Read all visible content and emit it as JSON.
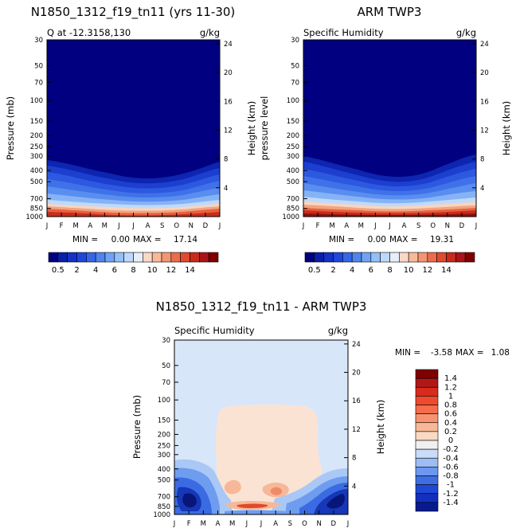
{
  "chart_data": [
    {
      "type": "contour",
      "title": "N1850_1312_f19_tn11 (yrs 11-30)",
      "subtitle_left": "Q at -12.3158,130",
      "units": "g/kg",
      "ylabel_left": "Pressure (mb)",
      "ylabel_right": "Height (km)",
      "months": [
        "J",
        "F",
        "M",
        "A",
        "M",
        "J",
        "J",
        "A",
        "S",
        "O",
        "N",
        "D",
        "J"
      ],
      "pressure_ticks": [
        30,
        50,
        70,
        100,
        150,
        200,
        250,
        300,
        400,
        500,
        700,
        850,
        1000
      ],
      "height_ticks": [
        4,
        8,
        12,
        16,
        20,
        24
      ],
      "ylim": [
        30,
        1000
      ],
      "min_label": "MIN =",
      "max_label": "MAX =",
      "min": "0.00",
      "max": "17.14"
    },
    {
      "type": "contour",
      "title": "ARM TWP3",
      "subtitle_left": "Specific Humidity",
      "units": "g/kg",
      "ylabel_left": "pressure level",
      "ylabel_right": "Height (km)",
      "months": [
        "J",
        "F",
        "M",
        "A",
        "M",
        "J",
        "J",
        "A",
        "S",
        "O",
        "N",
        "D",
        "J"
      ],
      "pressure_ticks": [
        30,
        50,
        70,
        100,
        150,
        200,
        250,
        300,
        400,
        500,
        700,
        850,
        1000
      ],
      "height_ticks": [
        4,
        8,
        12,
        16,
        20,
        24
      ],
      "ylim": [
        30,
        1000
      ],
      "min_label": "MIN =",
      "max_label": "MAX =",
      "min": "0.00",
      "max": "19.31"
    },
    {
      "type": "contour",
      "title": "N1850_1312_f19_tn11 - ARM TWP3",
      "subtitle_left": "Specific Humidity",
      "units": "g/kg",
      "ylabel_left": "Pressure (mb)",
      "ylabel_right": "Height (km)",
      "months": [
        "J",
        "F",
        "M",
        "A",
        "M",
        "J",
        "J",
        "A",
        "S",
        "O",
        "N",
        "D",
        "J"
      ],
      "pressure_ticks": [
        30,
        50,
        70,
        100,
        150,
        200,
        250,
        300,
        400,
        500,
        700,
        850,
        1000
      ],
      "height_ticks": [
        4,
        8,
        12,
        16,
        20,
        24
      ],
      "ylim": [
        30,
        1000
      ],
      "min_label": "MIN =",
      "max_label": "MAX =",
      "min": "-3.58",
      "max": "1.08"
    }
  ],
  "colorbar_abs": {
    "labels": [
      "0.5",
      "2",
      "4",
      "6",
      "8",
      "10",
      "12",
      "14"
    ],
    "colors": [
      "#000080",
      "#0a1fa8",
      "#1431c8",
      "#1e47dd",
      "#3566e6",
      "#4f84ee",
      "#6fa2f4",
      "#94bff7",
      "#bcd8fa",
      "#e8eef8",
      "#fad9c4",
      "#f8b99b",
      "#f49572",
      "#ec6c4c",
      "#e04a2e",
      "#c82a1c",
      "#a8141a",
      "#800000"
    ]
  },
  "colorbar_diff": {
    "labels": [
      "1.4",
      "1.2",
      "1",
      "0.8",
      "0.6",
      "0.4",
      "0.2",
      "0",
      "-0.2",
      "-0.4",
      "-0.6",
      "-0.8",
      "-1",
      "-1.2",
      "-1.4"
    ],
    "colors": [
      "#800000",
      "#b01818",
      "#d92a1e",
      "#ef4a2c",
      "#f46d4d",
      "#f7946f",
      "#f8b898",
      "#fbd9c2",
      "#f1f0f0",
      "#c9dcf8",
      "#9cbdf5",
      "#6c98ef",
      "#3f6ee4",
      "#1f48d6",
      "#1230bd",
      "#081a8f"
    ]
  }
}
